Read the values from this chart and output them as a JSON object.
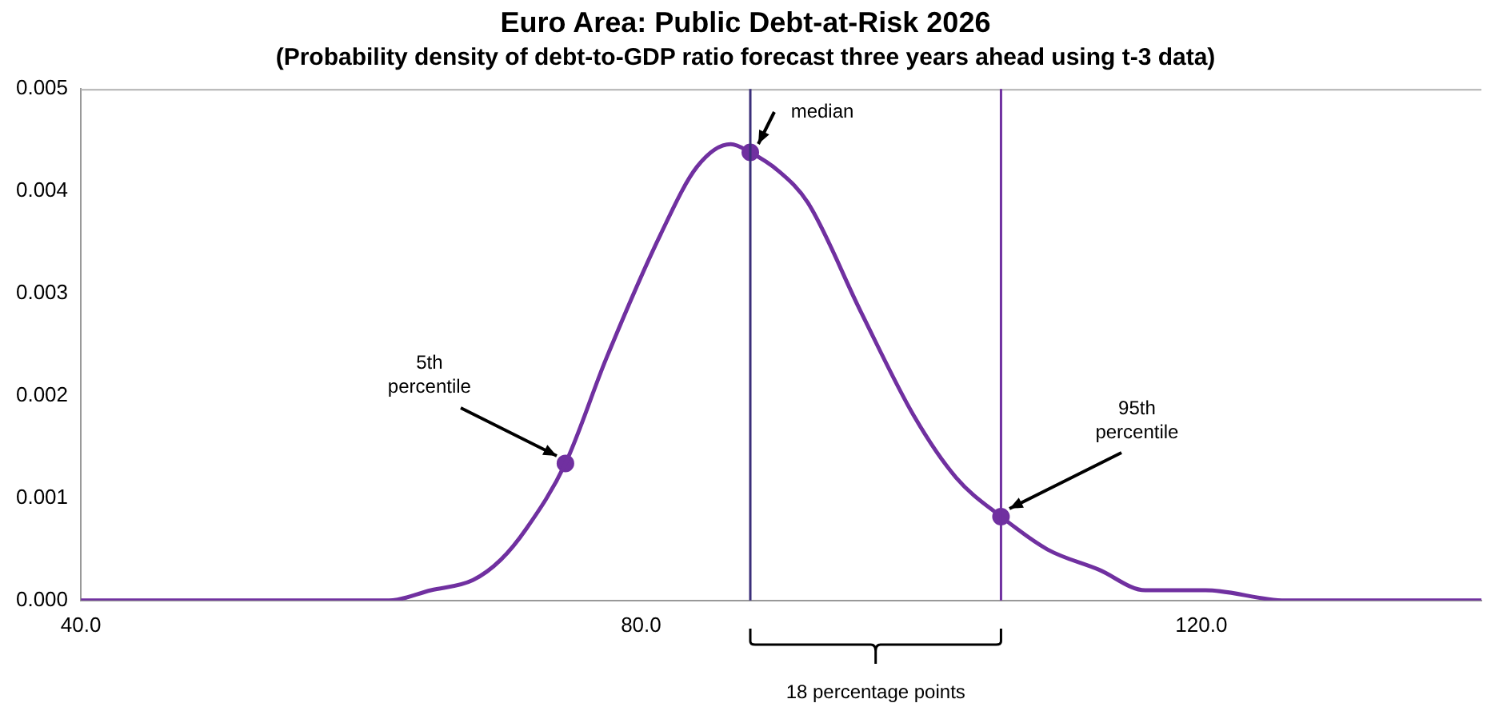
{
  "chart_data": {
    "type": "line",
    "title": "Euro Area: Public Debt-at-Risk 2026",
    "subtitle": "(Probability density of debt-to-GDP ratio forecast three years ahead using t-3 data)",
    "x": [
      40,
      50,
      58,
      62,
      65,
      68,
      70,
      71.8,
      74.6,
      77.5,
      81.4,
      84,
      86.4,
      87.8,
      89.8,
      91.9,
      95.7,
      99.5,
      102.5,
      105.7,
      109,
      112.7,
      116,
      120.3,
      126,
      132,
      140
    ],
    "series": [
      {
        "color": "#7030a0",
        "marker": "none",
        "values": [
          0,
          0,
          0,
          0,
          0.0001,
          0.0002,
          0.0004,
          0.0007,
          0.00134,
          0.00236,
          0.00358,
          0.00424,
          0.00446,
          0.00438,
          0.0042,
          0.00389,
          0.00282,
          0.0018,
          0.0012,
          0.00082,
          0.0005,
          0.0003,
          0.0001,
          0.0001,
          0,
          0,
          0
        ]
      },
      {
        "type": "scatter",
        "color": "#7030a0",
        "marker": "circle",
        "x": [
          74.6,
          87.8,
          105.7
        ],
        "values": [
          0.00134,
          0.00438,
          0.00082
        ]
      }
    ],
    "xlim": [
      40,
      140
    ],
    "xticks": [
      {
        "value": 40,
        "label": "40.0"
      },
      {
        "value": 80,
        "label": "80.0"
      },
      {
        "value": 120,
        "label": "120.0"
      }
    ],
    "ylim": [
      0,
      0.005
    ],
    "yticks": [
      {
        "value": 0,
        "label": "0.000"
      },
      {
        "value": 0.001,
        "label": "0.001"
      },
      {
        "value": 0.002,
        "label": "0.002"
      },
      {
        "value": 0.003,
        "label": "0.003"
      },
      {
        "value": 0.004,
        "label": "0.004"
      },
      {
        "value": 0.005,
        "label": "0.005"
      }
    ],
    "ref_lines": [
      {
        "axis": "x",
        "value": 87.8,
        "color": "#3b2f7a"
      },
      {
        "axis": "x",
        "value": 105.7,
        "color": "#7030a0"
      }
    ],
    "annotations": [
      {
        "text": "5th percentile",
        "x": 74.6,
        "y": 0.00134
      },
      {
        "text": "median",
        "x": 87.8,
        "y": 0.00438
      },
      {
        "text": "95th percentile",
        "x": 105.7,
        "y": 0.00082
      },
      "18 percentage points"
    ],
    "grid": false,
    "legend": false,
    "line_style": "solid"
  }
}
